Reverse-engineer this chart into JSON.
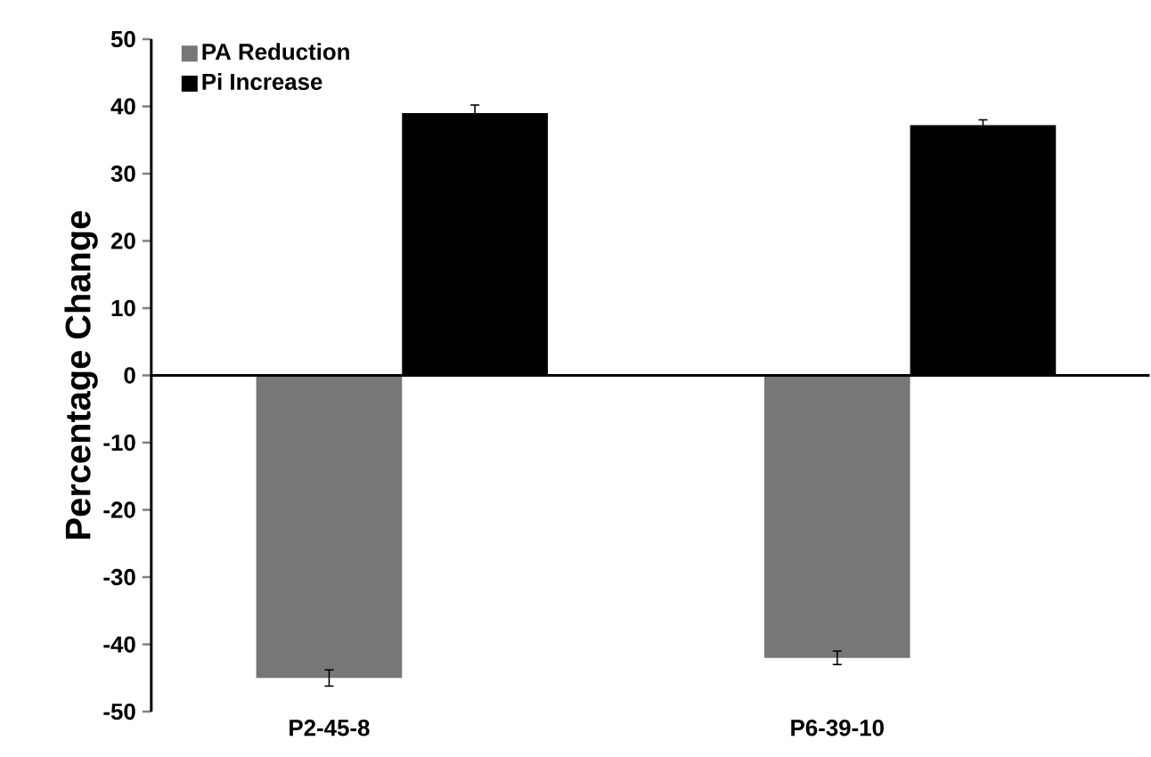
{
  "chart_data": {
    "type": "bar",
    "ylabel": "Percentage  Change",
    "categories": [
      "P2-45-8",
      "P6-39-10"
    ],
    "series": [
      {
        "name": "PA Reduction",
        "color": "#777777",
        "values": [
          -45,
          -42
        ],
        "errors": [
          1.2,
          1
        ]
      },
      {
        "name": "Pi Increase",
        "color": "#000000",
        "values": [
          39,
          37.2
        ],
        "errors": [
          1.2,
          0.8
        ]
      }
    ],
    "ylim": [
      -50,
      50
    ],
    "yticks": [
      -50,
      -40,
      -30,
      -20,
      -10,
      0,
      10,
      20,
      30,
      40,
      50
    ],
    "legend": "top left"
  }
}
